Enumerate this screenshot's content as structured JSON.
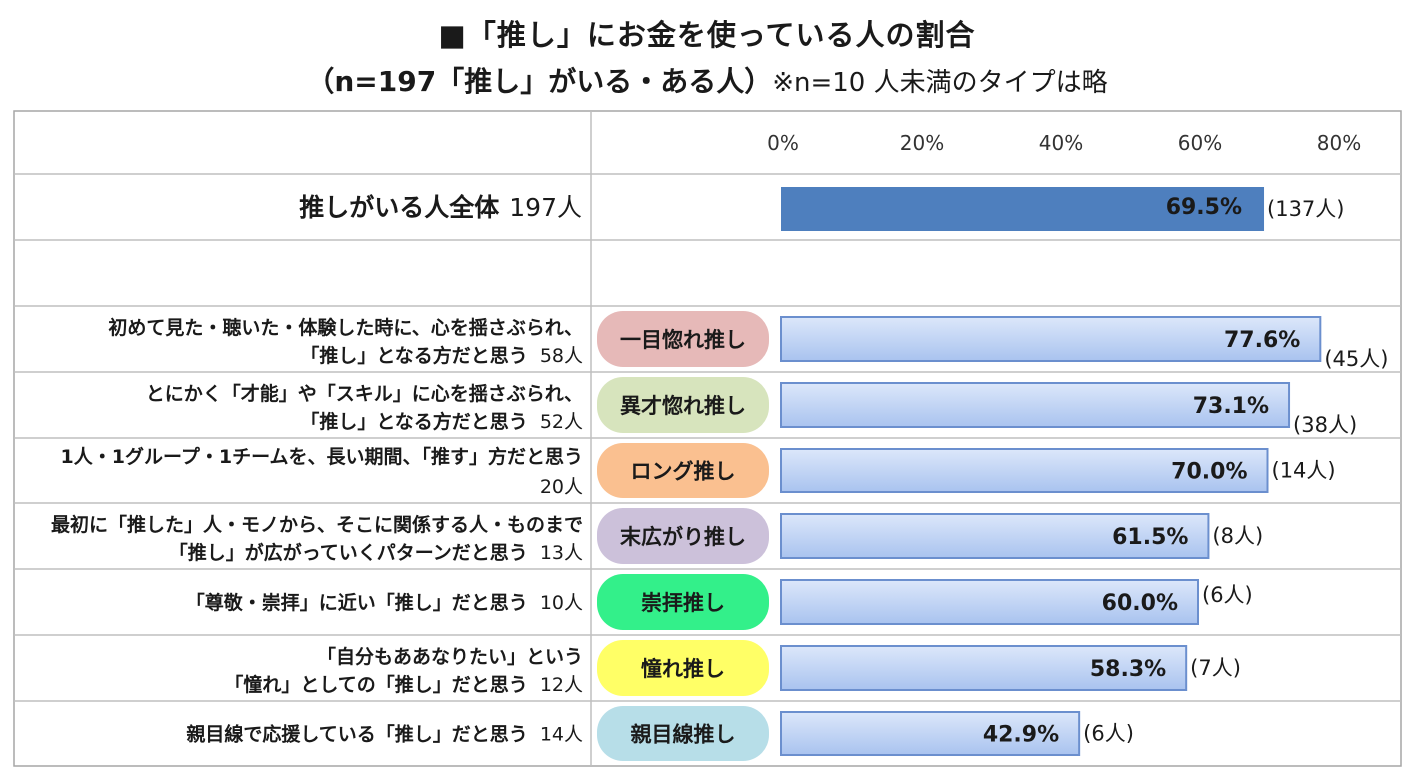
{
  "title_line1": "■「推し」にお金を使っている人の割合",
  "title_line2": "（n=197「推し」がいる・ある人）",
  "title_note": "※n=10 人未満のタイプは略",
  "chart_data": {
    "type": "bar",
    "orientation": "horizontal",
    "xlim": [
      0,
      80
    ],
    "x_ticks": [
      "0%",
      "20%",
      "40%",
      "60%",
      "80%"
    ],
    "x_tick_values": [
      0,
      20,
      40,
      60,
      80
    ],
    "colors": {
      "total_bar": "#4e7fbe",
      "type_bar_top": "#dce7fa",
      "type_bar_bottom": "#a9c3ef",
      "type_bar_border": "#6b8fce"
    },
    "total": {
      "label": "推しがいる人全体",
      "n_label": "197人",
      "value": 69.5,
      "value_label": "69.5%",
      "count_label": "(137人)"
    },
    "rows": [
      {
        "desc": [
          "初めて見た・聴いた・体験した時に、心を揺さぶられ、",
          "「推し」となる方だと思う"
        ],
        "n_label": "58人",
        "type": "一目惚れ推し",
        "badge_color": "#e6b9b8",
        "value": 77.6,
        "value_label": "77.6%",
        "count_label": "(45人)"
      },
      {
        "desc": [
          "とにかく「才能」や「スキル」に心を揺さぶられ、",
          "「推し」となる方だと思う"
        ],
        "n_label": "52人",
        "type": "異才惚れ推し",
        "badge_color": "#d7e4bd",
        "value": 73.1,
        "value_label": "73.1%",
        "count_label": "(38人)"
      },
      {
        "desc": [
          "1人・1グループ・1チームを、長い期間、「推す」方だと思う"
        ],
        "n_label": "20人",
        "type": "ロング推し",
        "badge_color": "#fac090",
        "value": 70.0,
        "value_label": "70.0%",
        "count_label": "(14人)"
      },
      {
        "desc": [
          "最初に「推した」人・モノから、そこに関係する人・ものまで",
          "「推し」が広がっていくパターンだと思う"
        ],
        "n_label": "13人",
        "type": "末広がり推し",
        "badge_color": "#ccc1da",
        "value": 61.5,
        "value_label": "61.5%",
        "count_label": "(8人)"
      },
      {
        "desc": [
          "「尊敬・崇拝」に近い「推し」だと思う"
        ],
        "n_label": "10人",
        "type": "崇拝推し",
        "badge_color": "#33f08a",
        "value": 60.0,
        "value_label": "60.0%",
        "count_label": "(6人)"
      },
      {
        "desc": [
          "「自分もああなりたい」という",
          "「憧れ」としての「推し」だと思う"
        ],
        "n_label": "12人",
        "type": "憧れ推し",
        "badge_color": "#ffff66",
        "value": 58.3,
        "value_label": "58.3%",
        "count_label": "(7人)"
      },
      {
        "desc": [
          "親目線で応援している「推し」だと思う"
        ],
        "n_label": "14人",
        "type": "親目線推し",
        "badge_color": "#b7dee8",
        "value": 42.9,
        "value_label": "42.9%",
        "count_label": "(6人)"
      }
    ]
  }
}
